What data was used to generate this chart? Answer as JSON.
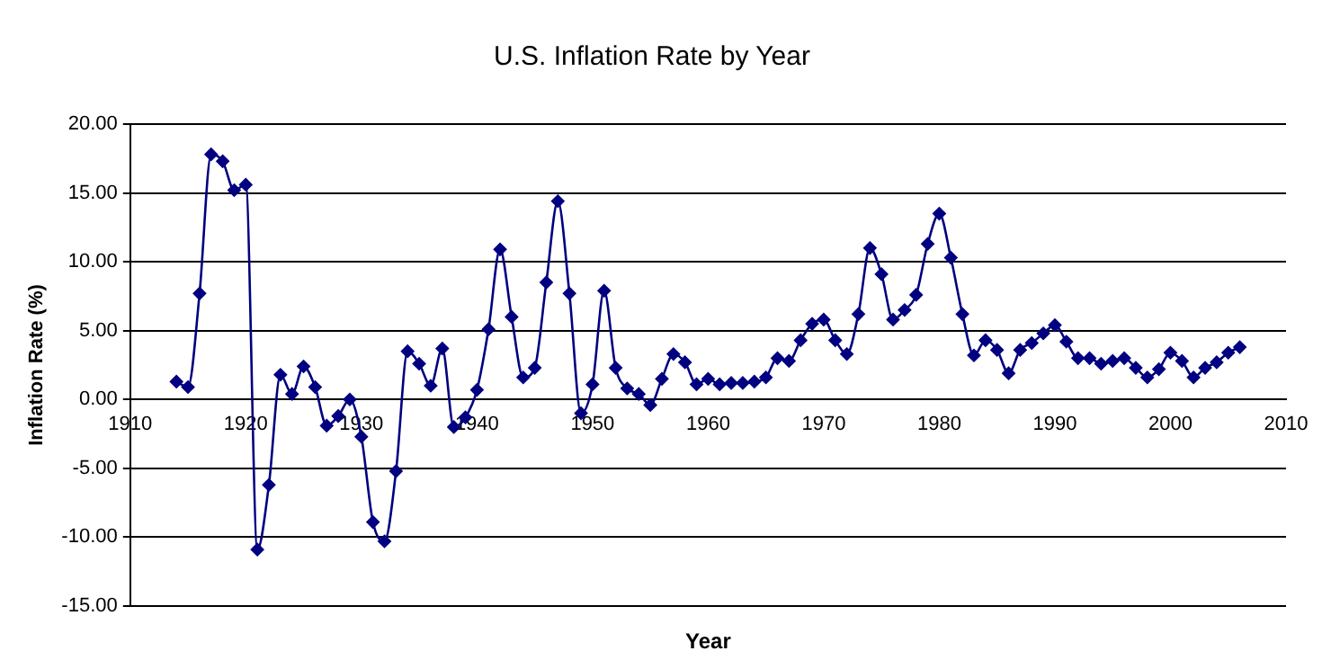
{
  "chart_data": {
    "type": "line",
    "title": "U.S. Inflation Rate by Year",
    "xlabel": "Year",
    "ylabel": "Inflation Rate (%)",
    "x": [
      1914,
      1915,
      1916,
      1917,
      1918,
      1919,
      1920,
      1921,
      1922,
      1923,
      1924,
      1925,
      1926,
      1927,
      1928,
      1929,
      1930,
      1931,
      1932,
      1933,
      1934,
      1935,
      1936,
      1937,
      1938,
      1939,
      1940,
      1941,
      1942,
      1943,
      1944,
      1945,
      1946,
      1947,
      1948,
      1949,
      1950,
      1951,
      1952,
      1953,
      1954,
      1955,
      1956,
      1957,
      1958,
      1959,
      1960,
      1961,
      1962,
      1963,
      1964,
      1965,
      1966,
      1967,
      1968,
      1969,
      1970,
      1971,
      1972,
      1973,
      1974,
      1975,
      1976,
      1977,
      1978,
      1979,
      1980,
      1981,
      1982,
      1983,
      1984,
      1985,
      1986,
      1987,
      1988,
      1989,
      1990,
      1991,
      1992,
      1993,
      1994,
      1995,
      1996,
      1997,
      1998,
      1999,
      2000,
      2001,
      2002,
      2003,
      2004,
      2005,
      2006
    ],
    "series": [
      {
        "color": "#000080",
        "values": [
          1.3,
          0.9,
          7.7,
          17.8,
          17.3,
          15.2,
          15.6,
          -10.9,
          -6.2,
          1.8,
          0.4,
          2.4,
          0.9,
          -1.9,
          -1.2,
          0.0,
          -2.7,
          -8.9,
          -10.3,
          -5.2,
          3.5,
          2.6,
          1.0,
          3.7,
          -2.0,
          -1.3,
          0.7,
          5.1,
          10.9,
          6.0,
          1.6,
          2.3,
          8.5,
          14.4,
          7.7,
          -1.0,
          1.1,
          7.9,
          2.3,
          0.8,
          0.4,
          -0.4,
          1.5,
          3.3,
          2.7,
          1.1,
          1.5,
          1.1,
          1.2,
          1.2,
          1.3,
          1.6,
          3.0,
          2.8,
          4.3,
          5.5,
          5.8,
          4.3,
          3.3,
          6.2,
          11.0,
          9.1,
          5.8,
          6.5,
          7.6,
          11.3,
          13.5,
          10.3,
          6.2,
          3.2,
          4.3,
          3.6,
          1.9,
          3.6,
          4.1,
          4.8,
          5.4,
          4.2,
          3.0,
          3.0,
          2.6,
          2.8,
          3.0,
          2.3,
          1.6,
          2.2,
          3.4,
          2.8,
          1.6,
          2.3,
          2.7,
          3.4,
          3.8
        ]
      }
    ],
    "xlim": [
      1910,
      2010
    ],
    "xticks": [
      1910,
      1920,
      1930,
      1940,
      1950,
      1960,
      1970,
      1980,
      1990,
      2000,
      2010
    ],
    "ylim": [
      -15,
      20
    ],
    "yticks": [
      {
        "value": -15,
        "label": "-15.00"
      },
      {
        "value": -10,
        "label": "-10.00"
      },
      {
        "value": -5,
        "label": "-5.00"
      },
      {
        "value": 0,
        "label": "0.00"
      },
      {
        "value": 5,
        "label": "5.00"
      },
      {
        "value": 10,
        "label": "10.00"
      },
      {
        "value": 15,
        "label": "15.00"
      },
      {
        "value": 20,
        "label": "20.00"
      }
    ],
    "grid": "y",
    "legend": false,
    "marker": "diamond",
    "line_style": "solid"
  }
}
